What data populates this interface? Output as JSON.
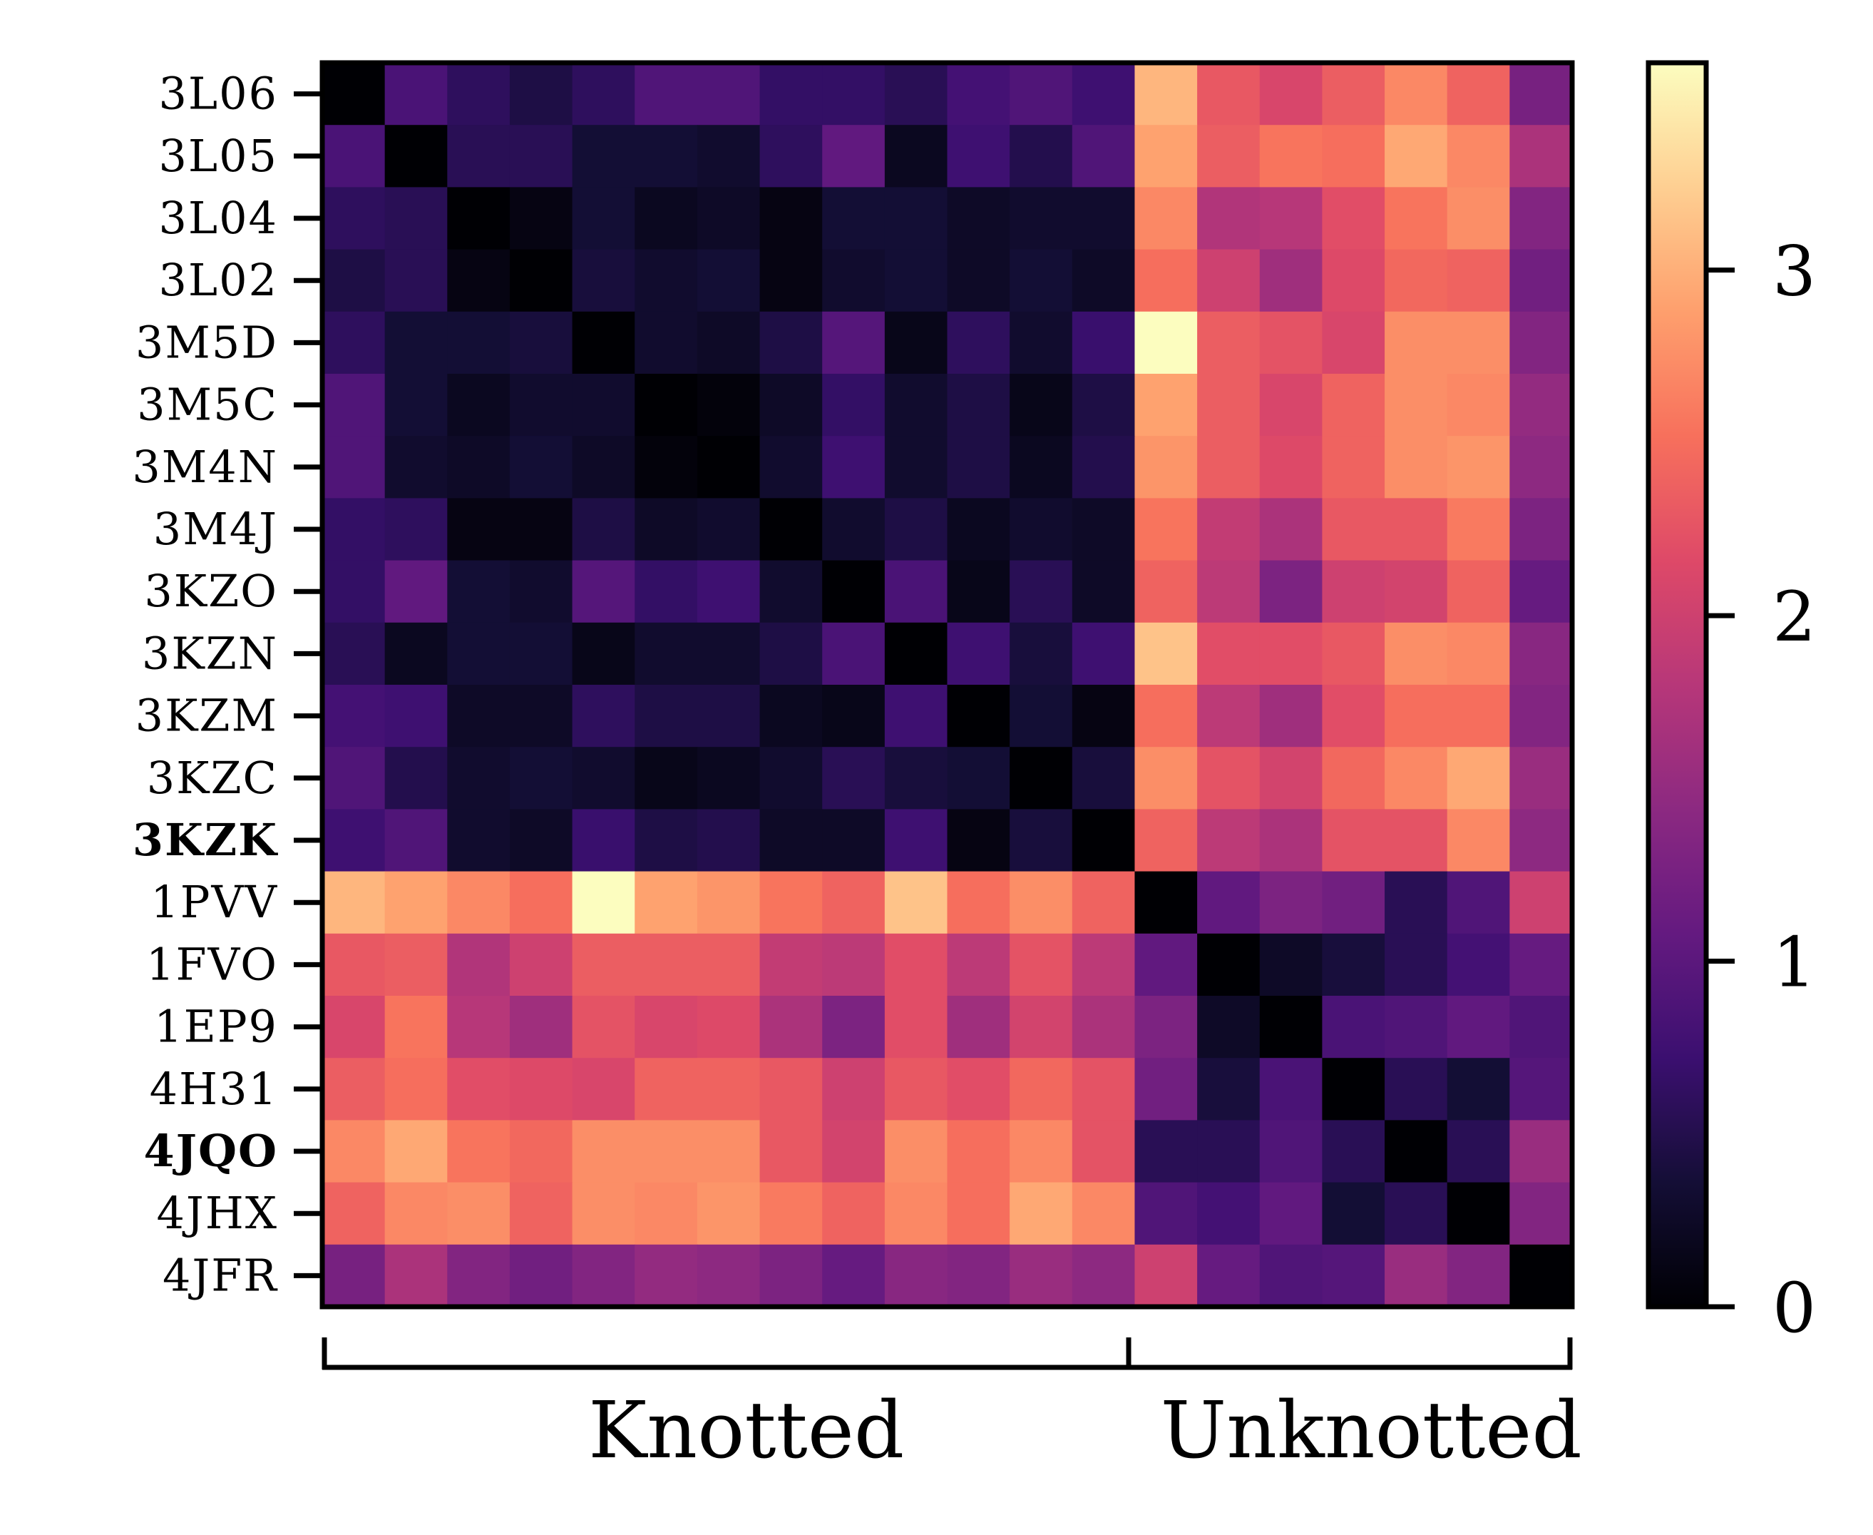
{
  "chart_data": {
    "type": "heatmap",
    "labels": [
      "3L06",
      "3L05",
      "3L04",
      "3L02",
      "3M5D",
      "3M5C",
      "3M4N",
      "3M4J",
      "3KZO",
      "3KZN",
      "3KZM",
      "3KZC",
      "3KZK",
      "1PVV",
      "1FVO",
      "1EP9",
      "4H31",
      "4JQO",
      "4JHX",
      "4JFR"
    ],
    "bold_labels": [
      "3KZK",
      "4JQO"
    ],
    "colormap": "magma",
    "vmin": 0,
    "vmax": 3.6,
    "colorbar_ticks": [
      0,
      1,
      2,
      3
    ],
    "groups": [
      {
        "label": "Knotted",
        "from": 0,
        "to": 13
      },
      {
        "label": "Unknotted",
        "from": 13,
        "to": 20
      }
    ],
    "matrix": [
      [
        0.0,
        0.85,
        0.6,
        0.45,
        0.6,
        0.9,
        0.9,
        0.65,
        0.65,
        0.55,
        0.8,
        0.9,
        0.75,
        3.05,
        2.3,
        2.1,
        2.35,
        2.7,
        2.4,
        1.25
      ],
      [
        0.85,
        0.0,
        0.55,
        0.55,
        0.35,
        0.35,
        0.3,
        0.6,
        1.05,
        0.2,
        0.75,
        0.5,
        0.9,
        2.9,
        2.35,
        2.55,
        2.5,
        2.95,
        2.7,
        1.7
      ],
      [
        0.6,
        0.55,
        0.0,
        0.1,
        0.35,
        0.2,
        0.25,
        0.1,
        0.35,
        0.35,
        0.25,
        0.3,
        0.3,
        2.7,
        1.75,
        1.8,
        2.2,
        2.55,
        2.75,
        1.35
      ],
      [
        0.45,
        0.55,
        0.1,
        0.0,
        0.4,
        0.3,
        0.35,
        0.1,
        0.3,
        0.35,
        0.25,
        0.35,
        0.25,
        2.5,
        2.0,
        1.6,
        2.15,
        2.45,
        2.4,
        1.2
      ],
      [
        0.6,
        0.35,
        0.35,
        0.4,
        0.0,
        0.3,
        0.25,
        0.45,
        0.95,
        0.15,
        0.6,
        0.3,
        0.7,
        3.6,
        2.35,
        2.25,
        2.1,
        2.75,
        2.75,
        1.35
      ],
      [
        0.9,
        0.35,
        0.2,
        0.3,
        0.3,
        0.0,
        0.05,
        0.25,
        0.65,
        0.3,
        0.45,
        0.15,
        0.45,
        2.9,
        2.35,
        2.1,
        2.4,
        2.75,
        2.7,
        1.5
      ],
      [
        0.9,
        0.3,
        0.25,
        0.35,
        0.25,
        0.05,
        0.0,
        0.3,
        0.75,
        0.3,
        0.45,
        0.2,
        0.5,
        2.8,
        2.35,
        2.15,
        2.4,
        2.75,
        2.8,
        1.45
      ],
      [
        0.65,
        0.6,
        0.1,
        0.1,
        0.45,
        0.25,
        0.3,
        0.0,
        0.3,
        0.45,
        0.2,
        0.3,
        0.25,
        2.55,
        1.9,
        1.7,
        2.3,
        2.3,
        2.6,
        1.3
      ],
      [
        0.65,
        1.05,
        0.35,
        0.3,
        0.95,
        0.65,
        0.75,
        0.3,
        0.0,
        0.85,
        0.15,
        0.55,
        0.25,
        2.4,
        1.85,
        1.3,
        2.0,
        2.05,
        2.4,
        1.1
      ],
      [
        0.55,
        0.2,
        0.35,
        0.35,
        0.15,
        0.3,
        0.3,
        0.45,
        0.85,
        0.0,
        0.75,
        0.4,
        0.75,
        3.15,
        2.2,
        2.2,
        2.3,
        2.75,
        2.7,
        1.4
      ],
      [
        0.8,
        0.75,
        0.25,
        0.25,
        0.6,
        0.45,
        0.45,
        0.2,
        0.15,
        0.75,
        0.0,
        0.35,
        0.1,
        2.5,
        1.85,
        1.6,
        2.2,
        2.5,
        2.5,
        1.35
      ],
      [
        0.9,
        0.5,
        0.3,
        0.35,
        0.3,
        0.15,
        0.2,
        0.3,
        0.55,
        0.4,
        0.35,
        0.0,
        0.4,
        2.75,
        2.25,
        2.05,
        2.45,
        2.7,
        2.95,
        1.55
      ],
      [
        0.75,
        0.9,
        0.3,
        0.25,
        0.7,
        0.45,
        0.5,
        0.25,
        0.25,
        0.75,
        0.1,
        0.4,
        0.0,
        2.4,
        1.85,
        1.7,
        2.25,
        2.25,
        2.7,
        1.45
      ],
      [
        3.05,
        2.9,
        2.7,
        2.5,
        3.6,
        2.9,
        2.8,
        2.55,
        2.4,
        3.15,
        2.5,
        2.75,
        2.4,
        0.0,
        1.05,
        1.3,
        1.2,
        0.55,
        0.9,
        2.0
      ],
      [
        2.3,
        2.35,
        1.75,
        2.0,
        2.35,
        2.35,
        2.35,
        1.9,
        1.85,
        2.2,
        1.85,
        2.25,
        1.85,
        1.05,
        0.0,
        0.25,
        0.4,
        0.55,
        0.8,
        1.1
      ],
      [
        2.1,
        2.55,
        1.8,
        1.6,
        2.25,
        2.1,
        2.15,
        1.7,
        1.3,
        2.2,
        1.6,
        2.05,
        1.7,
        1.3,
        0.25,
        0.0,
        0.85,
        0.9,
        1.05,
        0.9
      ],
      [
        2.35,
        2.5,
        2.2,
        2.15,
        2.1,
        2.4,
        2.4,
        2.3,
        2.0,
        2.3,
        2.2,
        2.45,
        2.25,
        1.2,
        0.4,
        0.85,
        0.0,
        0.55,
        0.35,
        0.95
      ],
      [
        2.7,
        2.95,
        2.55,
        2.45,
        2.75,
        2.75,
        2.75,
        2.3,
        2.05,
        2.75,
        2.5,
        2.7,
        2.25,
        0.55,
        0.55,
        0.9,
        0.55,
        0.0,
        0.55,
        1.55
      ],
      [
        2.4,
        2.7,
        2.75,
        2.4,
        2.75,
        2.7,
        2.8,
        2.6,
        2.4,
        2.7,
        2.5,
        2.95,
        2.7,
        0.9,
        0.8,
        1.05,
        0.35,
        0.55,
        0.0,
        1.35
      ],
      [
        1.25,
        1.7,
        1.35,
        1.2,
        1.35,
        1.5,
        1.45,
        1.3,
        1.1,
        1.4,
        1.35,
        1.55,
        1.45,
        2.0,
        1.1,
        0.9,
        0.95,
        1.55,
        1.35,
        0.0
      ]
    ]
  }
}
